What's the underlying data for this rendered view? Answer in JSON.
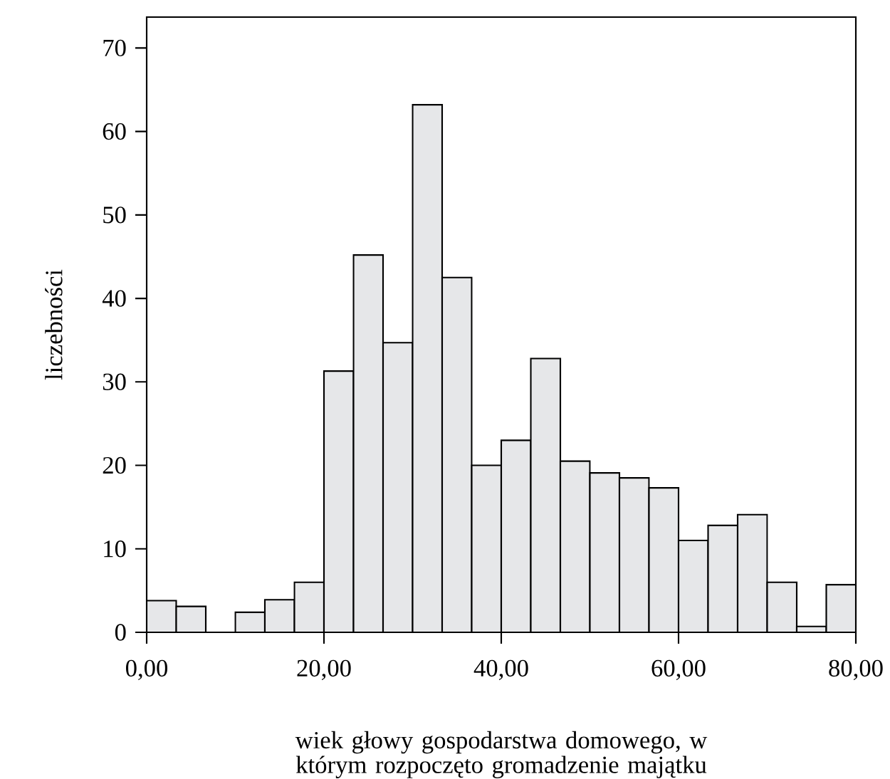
{
  "chart_data": {
    "type": "histogram",
    "xlabel": "wiek głowy gospodarstwa domowego, w którym rozpoczęto gromadzenie majątku",
    "ylabel": "liczebności",
    "bins": [
      0,
      3.333,
      6.667,
      10,
      13.333,
      16.667,
      20,
      23.333,
      26.667,
      30,
      33.333,
      36.667,
      40,
      43.333,
      46.667,
      50,
      53.333,
      56.667,
      60,
      63.333,
      66.667,
      70,
      73.333,
      76.667,
      80
    ],
    "values": [
      3.8,
      3.1,
      0,
      2.4,
      3.9,
      6.0,
      31.3,
      45.2,
      34.7,
      63.2,
      42.5,
      20.0,
      23.0,
      32.8,
      20.5,
      19.1,
      18.5,
      17.3,
      11.0,
      12.8,
      14.1,
      6.0,
      0.7,
      5.7
    ],
    "color": "#e6e7e9",
    "xlim": [
      0,
      80
    ],
    "ylim": [
      0,
      73.7
    ],
    "xticks": [
      {
        "value": 0,
        "label": "0,00"
      },
      {
        "value": 20,
        "label": "20,00"
      },
      {
        "value": 40,
        "label": "40,00"
      },
      {
        "value": 60,
        "label": "60,00"
      },
      {
        "value": 80,
        "label": "80,00"
      }
    ],
    "yticks": [
      0,
      10,
      20,
      30,
      40,
      50,
      60,
      70
    ],
    "grid": false
  }
}
